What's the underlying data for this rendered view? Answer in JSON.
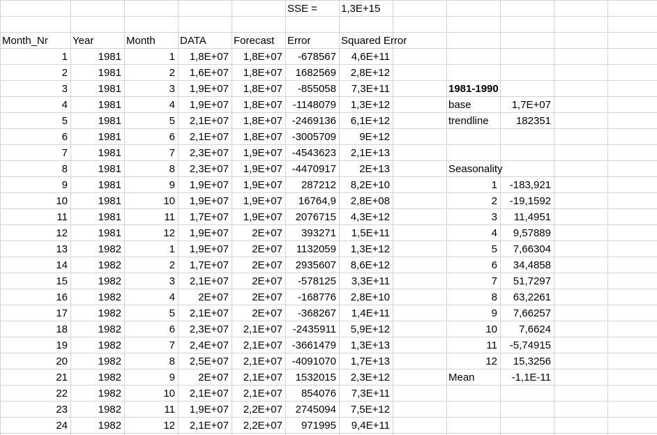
{
  "sheet": {
    "sse_label": "SSE =",
    "sse_value": "1,3E+15",
    "headers": [
      "Month_Nr",
      "Year",
      "Month",
      "DATA",
      "Forecast",
      "Error",
      "Squared Error"
    ],
    "rows": [
      [
        "1",
        "1981",
        "1",
        "1,8E+07",
        "1,8E+07",
        "-678567",
        "4,6E+11"
      ],
      [
        "2",
        "1981",
        "2",
        "1,6E+07",
        "1,8E+07",
        "1682569",
        "2,8E+12"
      ],
      [
        "3",
        "1981",
        "3",
        "1,9E+07",
        "1,8E+07",
        "-855058",
        "7,3E+11"
      ],
      [
        "4",
        "1981",
        "4",
        "1,9E+07",
        "1,8E+07",
        "-1148079",
        "1,3E+12"
      ],
      [
        "5",
        "1981",
        "5",
        "2,1E+07",
        "1,8E+07",
        "-2469136",
        "6,1E+12"
      ],
      [
        "6",
        "1981",
        "6",
        "2,1E+07",
        "1,8E+07",
        "-3005709",
        "9E+12"
      ],
      [
        "7",
        "1981",
        "7",
        "2,3E+07",
        "1,9E+07",
        "-4543623",
        "2,1E+13"
      ],
      [
        "8",
        "1981",
        "8",
        "2,3E+07",
        "1,9E+07",
        "-4470917",
        "2E+13"
      ],
      [
        "9",
        "1981",
        "9",
        "1,9E+07",
        "1,9E+07",
        "287212",
        "8,2E+10"
      ],
      [
        "10",
        "1981",
        "10",
        "1,9E+07",
        "1,9E+07",
        "16764,9",
        "2,8E+08"
      ],
      [
        "11",
        "1981",
        "11",
        "1,7E+07",
        "1,9E+07",
        "2076715",
        "4,3E+12"
      ],
      [
        "12",
        "1981",
        "12",
        "1,9E+07",
        "2E+07",
        "393271",
        "1,5E+11"
      ],
      [
        "13",
        "1982",
        "1",
        "1,9E+07",
        "2E+07",
        "1132059",
        "1,3E+12"
      ],
      [
        "14",
        "1982",
        "2",
        "1,7E+07",
        "2E+07",
        "2935607",
        "8,6E+12"
      ],
      [
        "15",
        "1982",
        "3",
        "2,1E+07",
        "2E+07",
        "-578125",
        "3,3E+11"
      ],
      [
        "16",
        "1982",
        "4",
        "2E+07",
        "2E+07",
        "-168776",
        "2,8E+10"
      ],
      [
        "17",
        "1982",
        "5",
        "2,1E+07",
        "2E+07",
        "-368267",
        "1,4E+11"
      ],
      [
        "18",
        "1982",
        "6",
        "2,3E+07",
        "2,1E+07",
        "-2435911",
        "5,9E+12"
      ],
      [
        "19",
        "1982",
        "7",
        "2,4E+07",
        "2,1E+07",
        "-3661479",
        "1,3E+13"
      ],
      [
        "20",
        "1982",
        "8",
        "2,5E+07",
        "2,1E+07",
        "-4091070",
        "1,7E+13"
      ],
      [
        "21",
        "1982",
        "9",
        "2E+07",
        "2,1E+07",
        "1532015",
        "2,3E+12"
      ],
      [
        "22",
        "1982",
        "10",
        "2,1E+07",
        "2,1E+07",
        "854076",
        "7,3E+11"
      ],
      [
        "23",
        "1982",
        "11",
        "1,9E+07",
        "2,2E+07",
        "2745094",
        "7,5E+12"
      ],
      [
        "24",
        "1982",
        "12",
        "2,1E+07",
        "2,2E+07",
        "971995",
        "9,4E+11"
      ]
    ]
  },
  "side": {
    "period_label": "1981-1990",
    "base_label": "base",
    "base_value": "1,7E+07",
    "trendline_label": "trendline",
    "trendline_value": "182351",
    "seasonality_label": "Seasonality",
    "seasonality": [
      [
        "1",
        "-183,921"
      ],
      [
        "2",
        "-19,1592"
      ],
      [
        "3",
        "11,4951"
      ],
      [
        "4",
        "9,57889"
      ],
      [
        "5",
        "7,66304"
      ],
      [
        "6",
        "34,4858"
      ],
      [
        "7",
        "51,7297"
      ],
      [
        "8",
        "63,2261"
      ],
      [
        "9",
        "7,66257"
      ],
      [
        "10",
        "7,6624"
      ],
      [
        "11",
        "-5,74915"
      ],
      [
        "12",
        "15,3256"
      ]
    ],
    "mean_label": "Mean",
    "mean_value": "-1,1E-11"
  }
}
